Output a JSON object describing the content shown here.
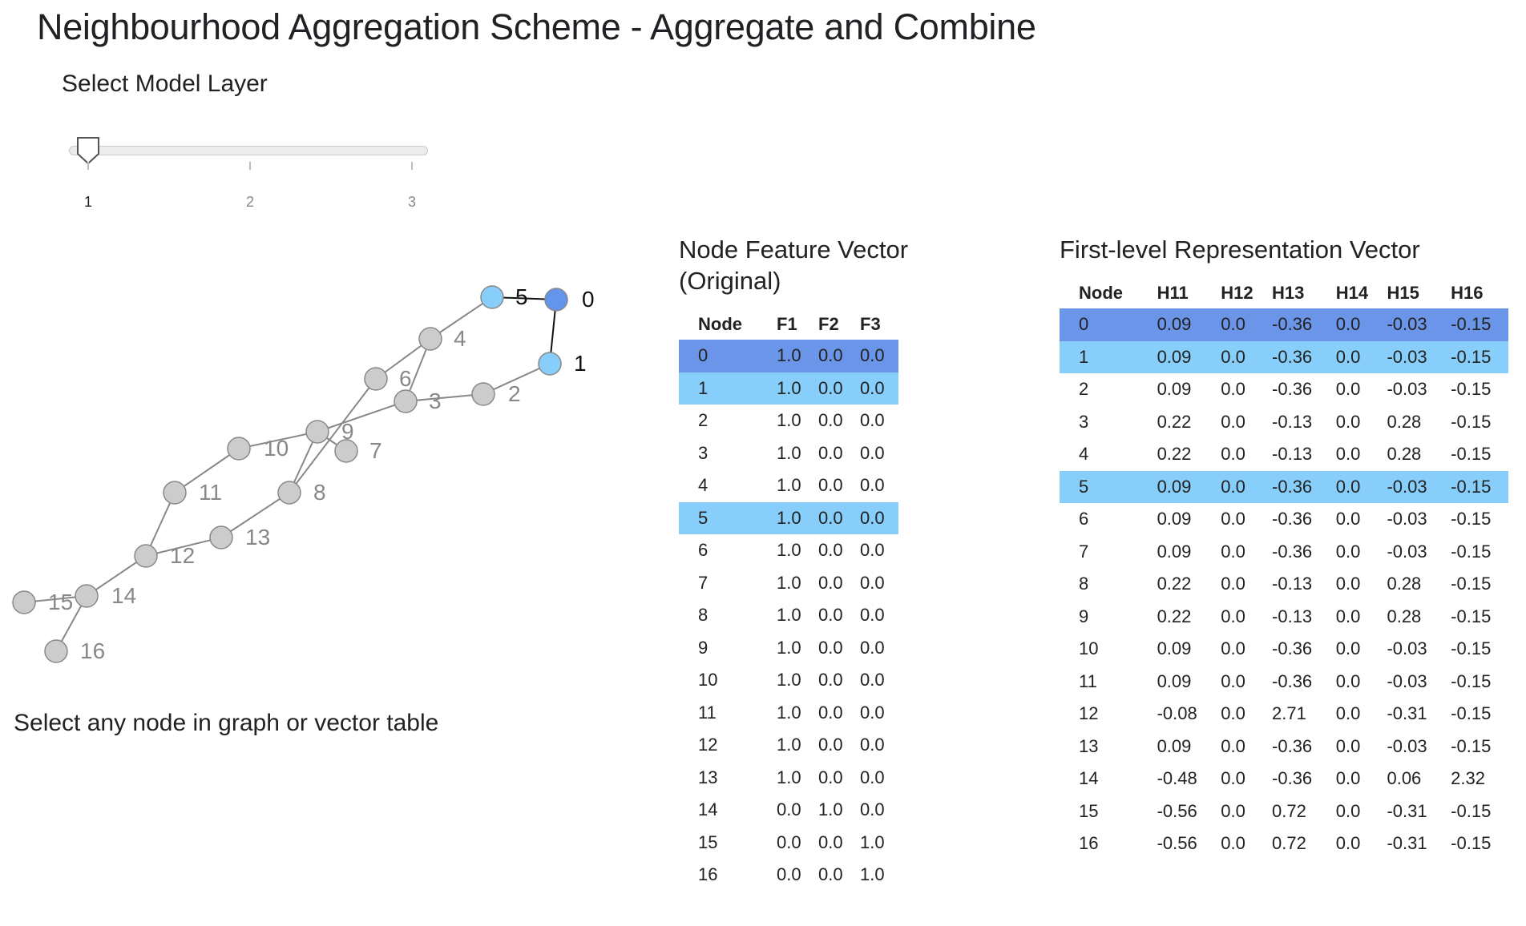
{
  "title": "Neighbourhood Aggregation Scheme - Aggregate and Combine",
  "slider": {
    "label": "Select Model Layer",
    "value": 1,
    "min": 1,
    "max": 3,
    "ticks": [
      "1",
      "2",
      "3"
    ]
  },
  "hint": "Select any node in graph or vector table",
  "colors": {
    "selected": "#6495ed",
    "neighbour": "#87cefa",
    "default_node": "#cccccc"
  },
  "graph": {
    "selected_node": 0,
    "neighbour_nodes": [
      1,
      5
    ],
    "nodes": [
      {
        "id": 0,
        "label": "0"
      },
      {
        "id": 1,
        "label": "1"
      },
      {
        "id": 2,
        "label": "2"
      },
      {
        "id": 3,
        "label": "3"
      },
      {
        "id": 4,
        "label": "4"
      },
      {
        "id": 5,
        "label": "5"
      },
      {
        "id": 6,
        "label": "6"
      },
      {
        "id": 7,
        "label": "7"
      },
      {
        "id": 8,
        "label": "8"
      },
      {
        "id": 9,
        "label": "9"
      },
      {
        "id": 10,
        "label": "10"
      },
      {
        "id": 11,
        "label": "11"
      },
      {
        "id": 12,
        "label": "12"
      },
      {
        "id": 13,
        "label": "13"
      },
      {
        "id": 14,
        "label": "14"
      },
      {
        "id": 15,
        "label": "15"
      },
      {
        "id": 16,
        "label": "16"
      }
    ],
    "edges": [
      [
        0,
        5
      ],
      [
        0,
        1
      ],
      [
        1,
        2
      ],
      [
        2,
        3
      ],
      [
        3,
        4
      ],
      [
        3,
        9
      ],
      [
        4,
        5
      ],
      [
        4,
        6
      ],
      [
        6,
        8
      ],
      [
        7,
        9
      ],
      [
        8,
        9
      ],
      [
        8,
        13
      ],
      [
        9,
        10
      ],
      [
        10,
        11
      ],
      [
        11,
        12
      ],
      [
        12,
        13
      ],
      [
        12,
        14
      ],
      [
        14,
        15
      ],
      [
        14,
        16
      ]
    ]
  },
  "feature_table": {
    "title": "Node Feature Vector (Original)",
    "columns": [
      "Node",
      "F1",
      "F2",
      "F3"
    ],
    "rows": [
      [
        "0",
        "1.0",
        "0.0",
        "0.0"
      ],
      [
        "1",
        "1.0",
        "0.0",
        "0.0"
      ],
      [
        "2",
        "1.0",
        "0.0",
        "0.0"
      ],
      [
        "3",
        "1.0",
        "0.0",
        "0.0"
      ],
      [
        "4",
        "1.0",
        "0.0",
        "0.0"
      ],
      [
        "5",
        "1.0",
        "0.0",
        "0.0"
      ],
      [
        "6",
        "1.0",
        "0.0",
        "0.0"
      ],
      [
        "7",
        "1.0",
        "0.0",
        "0.0"
      ],
      [
        "8",
        "1.0",
        "0.0",
        "0.0"
      ],
      [
        "9",
        "1.0",
        "0.0",
        "0.0"
      ],
      [
        "10",
        "1.0",
        "0.0",
        "0.0"
      ],
      [
        "11",
        "1.0",
        "0.0",
        "0.0"
      ],
      [
        "12",
        "1.0",
        "0.0",
        "0.0"
      ],
      [
        "13",
        "1.0",
        "0.0",
        "0.0"
      ],
      [
        "14",
        "0.0",
        "1.0",
        "0.0"
      ],
      [
        "15",
        "0.0",
        "0.0",
        "1.0"
      ],
      [
        "16",
        "0.0",
        "0.0",
        "1.0"
      ]
    ]
  },
  "repr_table": {
    "title": "First-level Representation Vector",
    "columns": [
      "Node",
      "H11",
      "H12",
      "H13",
      "H14",
      "H15",
      "H16"
    ],
    "rows": [
      [
        "0",
        "0.09",
        "0.0",
        "-0.36",
        "0.0",
        "-0.03",
        "-0.15"
      ],
      [
        "1",
        "0.09",
        "0.0",
        "-0.36",
        "0.0",
        "-0.03",
        "-0.15"
      ],
      [
        "2",
        "0.09",
        "0.0",
        "-0.36",
        "0.0",
        "-0.03",
        "-0.15"
      ],
      [
        "3",
        "0.22",
        "0.0",
        "-0.13",
        "0.0",
        "0.28",
        "-0.15"
      ],
      [
        "4",
        "0.22",
        "0.0",
        "-0.13",
        "0.0",
        "0.28",
        "-0.15"
      ],
      [
        "5",
        "0.09",
        "0.0",
        "-0.36",
        "0.0",
        "-0.03",
        "-0.15"
      ],
      [
        "6",
        "0.09",
        "0.0",
        "-0.36",
        "0.0",
        "-0.03",
        "-0.15"
      ],
      [
        "7",
        "0.09",
        "0.0",
        "-0.36",
        "0.0",
        "-0.03",
        "-0.15"
      ],
      [
        "8",
        "0.22",
        "0.0",
        "-0.13",
        "0.0",
        "0.28",
        "-0.15"
      ],
      [
        "9",
        "0.22",
        "0.0",
        "-0.13",
        "0.0",
        "0.28",
        "-0.15"
      ],
      [
        "10",
        "0.09",
        "0.0",
        "-0.36",
        "0.0",
        "-0.03",
        "-0.15"
      ],
      [
        "11",
        "0.09",
        "0.0",
        "-0.36",
        "0.0",
        "-0.03",
        "-0.15"
      ],
      [
        "12",
        "-0.08",
        "0.0",
        "2.71",
        "0.0",
        "-0.31",
        "-0.15"
      ],
      [
        "13",
        "0.09",
        "0.0",
        "-0.36",
        "0.0",
        "-0.03",
        "-0.15"
      ],
      [
        "14",
        "-0.48",
        "0.0",
        "-0.36",
        "0.0",
        "0.06",
        "2.32"
      ],
      [
        "15",
        "-0.56",
        "0.0",
        "0.72",
        "0.0",
        "-0.31",
        "-0.15"
      ],
      [
        "16",
        "-0.56",
        "0.0",
        "0.72",
        "0.0",
        "-0.31",
        "-0.15"
      ]
    ]
  }
}
